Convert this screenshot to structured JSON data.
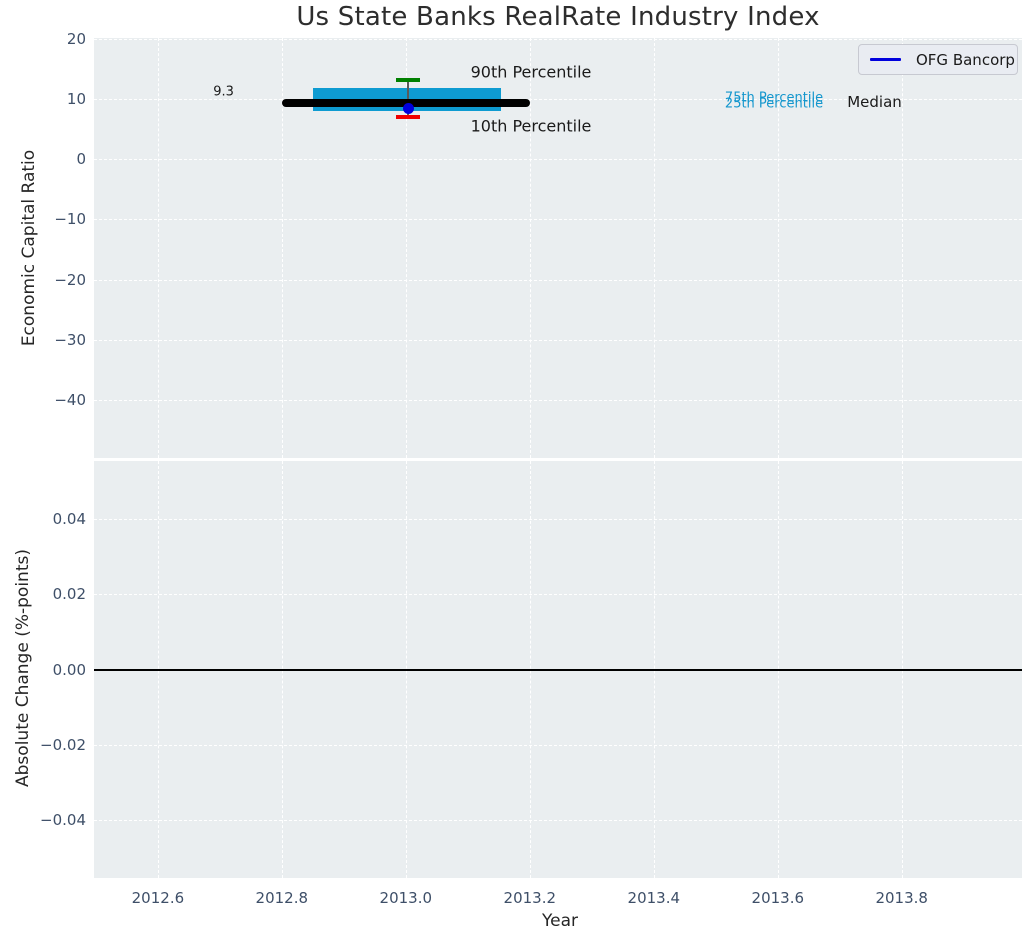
{
  "title": "Us State Banks RealRate Industry Index",
  "legend": {
    "label": "OFG Bancorp"
  },
  "colors": {
    "plot_bg": "#eaeef0",
    "grid": "#ffffff",
    "tick_text": "#3e4f68",
    "iqr_box": "#0e9bd1",
    "median_line": "#000000",
    "p90_cap": "#008000",
    "p10_cap": "#f00000",
    "company_point": "#0000dd",
    "whisker": "#5a5a5a",
    "zero_line": "#000000"
  },
  "chart_data": [
    {
      "type": "box-timeseries",
      "title": "Us State Banks RealRate Industry Index",
      "ylabel": "Economic Capital Ratio",
      "ylim": [
        -49.6,
        20.1
      ],
      "xlim": [
        2012.497,
        2013.994
      ],
      "yticks": [
        20,
        10,
        0,
        -10,
        -20,
        -30,
        -40
      ],
      "ytick_labels": [
        "20",
        "10",
        "0",
        "−10",
        "−20",
        "−30",
        "−40"
      ],
      "xticks": [
        2012.6,
        2012.8,
        2013.0,
        2013.2,
        2013.4,
        2013.6,
        2013.8
      ],
      "xtick_labels": [],
      "grid": true,
      "legend_position": "upper right",
      "industry": {
        "year_center": 2013.004,
        "median": 9.3,
        "median_span": [
          2012.8,
          2013.2
        ],
        "p75": 11.85,
        "p25": 8.05,
        "box_span": [
          2012.85,
          2013.154
        ],
        "p90": 13.1,
        "p10": 6.95
      },
      "series": [
        {
          "name": "OFG Bancorp",
          "marker": "circle",
          "color": "#0000dd",
          "x": [
            2013.004
          ],
          "y": [
            8.45
          ]
        }
      ],
      "annotations": [
        {
          "text": "9.3",
          "x": 2012.706,
          "y": 11.15,
          "color": "#1a1a1a",
          "size": 13
        },
        {
          "text": "90th Percentile",
          "x": 2013.202,
          "y": 14.45,
          "color": "#1a1a1a",
          "size": 16
        },
        {
          "text": "10th Percentile",
          "x": 2013.202,
          "y": 5.58,
          "color": "#1a1a1a",
          "size": 16
        },
        {
          "text": "75th Percentile",
          "x": 2013.594,
          "y": 10.14,
          "color": "#1396cd",
          "size": 13
        },
        {
          "text": "25th Percentile",
          "x": 2013.594,
          "y": 9.23,
          "color": "#1396cd",
          "size": 13
        },
        {
          "text": "Median",
          "x": 2013.756,
          "y": 9.56,
          "color": "#1a1a1a",
          "size": 15
        }
      ]
    },
    {
      "type": "line",
      "ylabel": "Absolute Change (%-points)",
      "xlabel": "Year",
      "ylim": [
        -0.0555,
        0.0555
      ],
      "xlim": [
        2012.497,
        2013.994
      ],
      "yticks": [
        0.04,
        0.02,
        0.0,
        -0.02,
        -0.04
      ],
      "ytick_labels": [
        "0.04",
        "0.02",
        "0.00",
        "−0.02",
        "−0.04"
      ],
      "xticks": [
        2012.6,
        2012.8,
        2013.0,
        2013.2,
        2013.4,
        2013.6,
        2013.8
      ],
      "xtick_labels": [
        "2012.6",
        "2012.8",
        "2013.0",
        "2013.2",
        "2013.4",
        "2013.6",
        "2013.8"
      ],
      "zero_line": 0.0,
      "grid": true,
      "series": []
    }
  ]
}
